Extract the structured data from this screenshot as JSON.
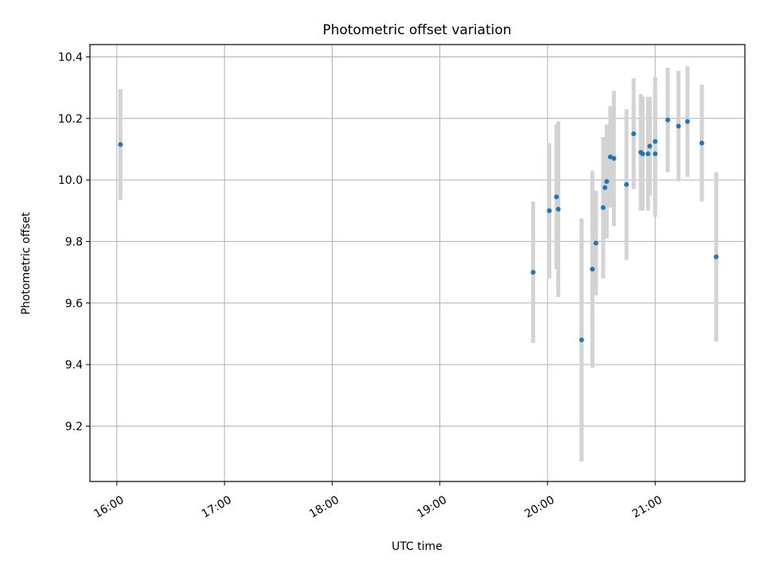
{
  "chart_data": {
    "type": "scatter",
    "title": "Photometric offset variation",
    "xlabel": "UTC time",
    "ylabel": "Photometric offset",
    "grid": true,
    "colors": {
      "point": "#1f77b4",
      "errorbar": "#d3d3d3",
      "grid": "#b0b0b0"
    },
    "xlim": [
      "15:45",
      "21:50"
    ],
    "ylim": [
      9.02,
      10.44
    ],
    "xticks": [
      "16:00",
      "17:00",
      "18:00",
      "19:00",
      "20:00",
      "21:00"
    ],
    "yticks": [
      9.2,
      9.4,
      9.6,
      9.8,
      10.0,
      10.2,
      10.4
    ],
    "series": [
      {
        "x": [
          "16:02",
          "19:52",
          "20:01",
          "20:05",
          "20:06",
          "20:19",
          "20:25",
          "20:27",
          "20:31",
          "20:32",
          "20:33",
          "20:35",
          "20:37",
          "20:44",
          "20:48",
          "20:52",
          "20:53",
          "20:56",
          "20:57",
          "21:00",
          "21:00",
          "21:07",
          "21:13",
          "21:18",
          "21:26",
          "21:34"
        ],
        "y": [
          10.115,
          9.7,
          9.9,
          9.945,
          9.905,
          9.48,
          9.71,
          9.795,
          9.91,
          9.975,
          9.995,
          10.075,
          10.07,
          9.985,
          10.15,
          10.09,
          10.085,
          10.085,
          10.11,
          10.125,
          10.085,
          10.195,
          10.175,
          10.19,
          10.12,
          9.75
        ],
        "yerr": [
          0.18,
          0.23,
          0.22,
          0.235,
          0.285,
          0.395,
          0.32,
          0.17,
          0.23,
          0.165,
          0.185,
          0.165,
          0.22,
          0.245,
          0.18,
          0.19,
          0.185,
          0.185,
          0.16,
          0.21,
          0.205,
          0.17,
          0.18,
          0.18,
          0.19,
          0.275
        ]
      }
    ]
  }
}
